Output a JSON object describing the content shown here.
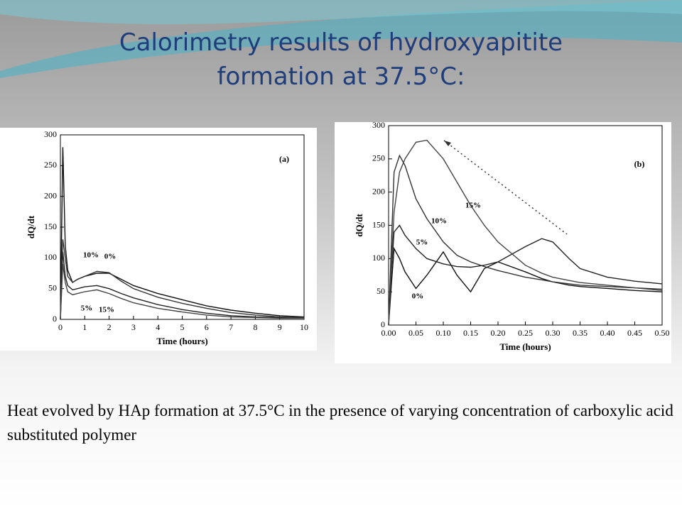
{
  "slide": {
    "title": "Calorimetry results of hydroxyapitite formation at 37.5°C:",
    "caption": "Heat evolved by HAp formation at 37.5°C in the presence of varying concentration of  carboxylic acid substituted polymer"
  },
  "chart_data": [
    {
      "type": "line",
      "annotation": "(a)",
      "x_label": "Time (hours)",
      "y_label": "dQ/dt",
      "x": [
        0,
        0.1,
        0.2,
        0.3,
        0.5,
        0.7,
        1,
        1.5,
        2,
        2.5,
        3,
        4,
        5,
        6,
        7,
        8,
        9,
        10
      ],
      "xlim": [
        0,
        10
      ],
      "xticks": [
        0,
        1,
        2,
        3,
        4,
        5,
        6,
        7,
        8,
        9,
        10
      ],
      "ylim": [
        0,
        300
      ],
      "yticks": [
        0,
        50,
        100,
        150,
        200,
        250,
        300
      ],
      "series": [
        {
          "name": "0%",
          "color": "#111111",
          "values": [
            0,
            280,
            120,
            80,
            60,
            65,
            70,
            75,
            75,
            65,
            55,
            42,
            32,
            22,
            15,
            10,
            6,
            4
          ]
        },
        {
          "name": "5%",
          "color": "#222222",
          "values": [
            0,
            110,
            70,
            55,
            48,
            50,
            53,
            55,
            50,
            42,
            35,
            24,
            16,
            10,
            6,
            4,
            3,
            2
          ]
        },
        {
          "name": "10%",
          "color": "#333333",
          "values": [
            0,
            130,
            100,
            70,
            60,
            65,
            70,
            78,
            76,
            62,
            50,
            36,
            26,
            18,
            11,
            7,
            4,
            3
          ]
        },
        {
          "name": "15%",
          "color": "#444444",
          "values": [
            0,
            90,
            60,
            45,
            40,
            42,
            45,
            48,
            42,
            34,
            27,
            18,
            12,
            7,
            4,
            3,
            2,
            2
          ]
        }
      ]
    },
    {
      "type": "line",
      "annotation": "(b)",
      "x_label": "Time (hours)",
      "y_label": "dQ/dt",
      "x": [
        0,
        0.005,
        0.01,
        0.02,
        0.03,
        0.05,
        0.07,
        0.1,
        0.125,
        0.15,
        0.175,
        0.2,
        0.25,
        0.28,
        0.3,
        0.33,
        0.35,
        0.4,
        0.45,
        0.5
      ],
      "xlim": [
        0,
        0.5
      ],
      "xticks": [
        {
          "value": 0,
          "label": "0.00"
        },
        0.05,
        {
          "value": 0.1,
          "label": "0.10"
        },
        0.15,
        {
          "value": 0.2,
          "label": "0.20"
        },
        0.25,
        {
          "value": 0.3,
          "label": "0.30"
        },
        0.35,
        {
          "value": 0.4,
          "label": "0.40"
        },
        0.45,
        {
          "value": 0.5,
          "label": "0.50"
        }
      ],
      "ylim": [
        0,
        300
      ],
      "yticks": [
        0,
        50,
        100,
        150,
        200,
        250,
        300
      ],
      "series": [
        {
          "name": "0%",
          "color": "#111111",
          "values": [
            0,
            60,
            115,
            100,
            80,
            55,
            75,
            110,
            75,
            50,
            85,
            95,
            80,
            70,
            65,
            60,
            58,
            55,
            52,
            50
          ]
        },
        {
          "name": "5%",
          "color": "#222222",
          "values": [
            0,
            80,
            140,
            150,
            135,
            115,
            100,
            92,
            88,
            87,
            90,
            95,
            118,
            130,
            125,
            100,
            85,
            72,
            66,
            62
          ]
        },
        {
          "name": "10%",
          "color": "#333333",
          "values": [
            0,
            120,
            230,
            255,
            240,
            190,
            160,
            125,
            105,
            95,
            88,
            82,
            72,
            68,
            65,
            62,
            60,
            58,
            56,
            54
          ]
        },
        {
          "name": "15%",
          "color": "#444444",
          "values": [
            0,
            90,
            170,
            230,
            250,
            275,
            278,
            250,
            215,
            180,
            150,
            125,
            90,
            78,
            72,
            67,
            64,
            60,
            56,
            52
          ]
        }
      ]
    }
  ]
}
